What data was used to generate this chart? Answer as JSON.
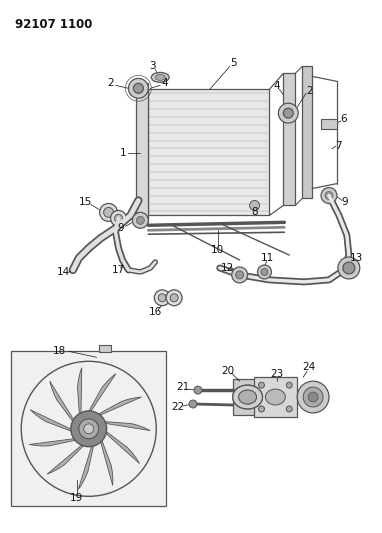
{
  "title": "92107 1100",
  "bg_color": "#ffffff",
  "fig_width": 3.82,
  "fig_height": 5.33,
  "dpi": 100
}
